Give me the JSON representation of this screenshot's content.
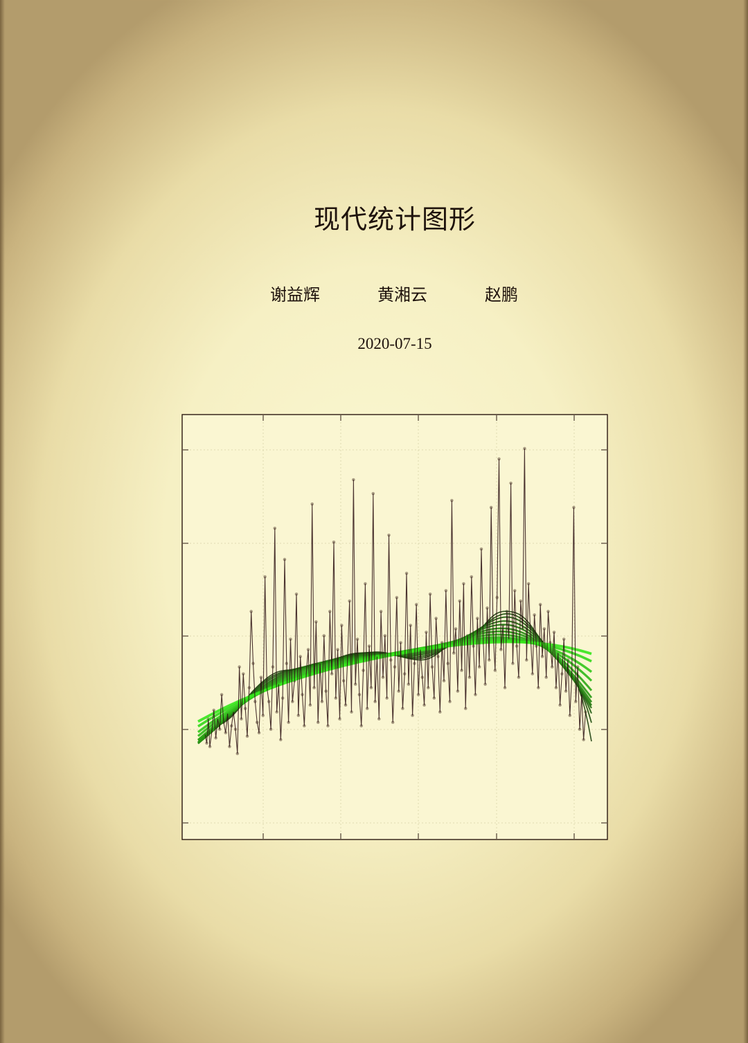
{
  "document": {
    "title": "现代统计图形",
    "authors": [
      "谢益辉",
      "黄湘云",
      "赵鹏"
    ],
    "date": "2020-07-15"
  },
  "colors": {
    "background": "#f8f3cd",
    "ink": "#2a1810",
    "points": "#3b2418",
    "smooth_dark": "#1a3d0c",
    "smooth_bright": "#36e61c"
  },
  "chart_data": {
    "type": "scatter",
    "title": "",
    "xlabel": "",
    "ylabel": "",
    "grid": true,
    "xlim": [
      0,
      1
    ],
    "ylim": [
      -0.1,
      1.05
    ],
    "points": [
      [
        0.018,
        0.165
      ],
      [
        0.022,
        0.14
      ],
      [
        0.026,
        0.21
      ],
      [
        0.03,
        0.13
      ],
      [
        0.035,
        0.175
      ],
      [
        0.04,
        0.235
      ],
      [
        0.045,
        0.155
      ],
      [
        0.05,
        0.21
      ],
      [
        0.055,
        0.18
      ],
      [
        0.06,
        0.28
      ],
      [
        0.065,
        0.2
      ],
      [
        0.07,
        0.17
      ],
      [
        0.075,
        0.225
      ],
      [
        0.08,
        0.13
      ],
      [
        0.085,
        0.19
      ],
      [
        0.09,
        0.23
      ],
      [
        0.095,
        0.18
      ],
      [
        0.1,
        0.11
      ],
      [
        0.105,
        0.36
      ],
      [
        0.11,
        0.21
      ],
      [
        0.115,
        0.34
      ],
      [
        0.12,
        0.24
      ],
      [
        0.125,
        0.16
      ],
      [
        0.13,
        0.3
      ],
      [
        0.135,
        0.52
      ],
      [
        0.14,
        0.37
      ],
      [
        0.145,
        0.26
      ],
      [
        0.15,
        0.2
      ],
      [
        0.155,
        0.17
      ],
      [
        0.16,
        0.33
      ],
      [
        0.165,
        0.22
      ],
      [
        0.17,
        0.62
      ],
      [
        0.175,
        0.3
      ],
      [
        0.18,
        0.26
      ],
      [
        0.185,
        0.18
      ],
      [
        0.19,
        0.36
      ],
      [
        0.195,
        0.76
      ],
      [
        0.2,
        0.23
      ],
      [
        0.205,
        0.31
      ],
      [
        0.21,
        0.15
      ],
      [
        0.215,
        0.27
      ],
      [
        0.22,
        0.67
      ],
      [
        0.225,
        0.37
      ],
      [
        0.23,
        0.2
      ],
      [
        0.235,
        0.44
      ],
      [
        0.24,
        0.26
      ],
      [
        0.245,
        0.32
      ],
      [
        0.25,
        0.57
      ],
      [
        0.255,
        0.22
      ],
      [
        0.26,
        0.39
      ],
      [
        0.265,
        0.28
      ],
      [
        0.27,
        0.19
      ],
      [
        0.275,
        0.34
      ],
      [
        0.28,
        0.41
      ],
      [
        0.285,
        0.25
      ],
      [
        0.29,
        0.83
      ],
      [
        0.295,
        0.3
      ],
      [
        0.3,
        0.49
      ],
      [
        0.305,
        0.2
      ],
      [
        0.31,
        0.37
      ],
      [
        0.315,
        0.26
      ],
      [
        0.32,
        0.45
      ],
      [
        0.325,
        0.29
      ],
      [
        0.33,
        0.19
      ],
      [
        0.335,
        0.52
      ],
      [
        0.34,
        0.34
      ],
      [
        0.345,
        0.72
      ],
      [
        0.35,
        0.27
      ],
      [
        0.355,
        0.41
      ],
      [
        0.36,
        0.21
      ],
      [
        0.365,
        0.48
      ],
      [
        0.37,
        0.32
      ],
      [
        0.375,
        0.25
      ],
      [
        0.38,
        0.38
      ],
      [
        0.385,
        0.55
      ],
      [
        0.39,
        0.23
      ],
      [
        0.395,
        0.9
      ],
      [
        0.4,
        0.31
      ],
      [
        0.405,
        0.44
      ],
      [
        0.41,
        0.28
      ],
      [
        0.415,
        0.19
      ],
      [
        0.42,
        0.35
      ],
      [
        0.425,
        0.6
      ],
      [
        0.43,
        0.24
      ],
      [
        0.435,
        0.42
      ],
      [
        0.44,
        0.3
      ],
      [
        0.445,
        0.86
      ],
      [
        0.45,
        0.26
      ],
      [
        0.455,
        0.39
      ],
      [
        0.46,
        0.21
      ],
      [
        0.465,
        0.52
      ],
      [
        0.47,
        0.33
      ],
      [
        0.475,
        0.45
      ],
      [
        0.48,
        0.27
      ],
      [
        0.485,
        0.74
      ],
      [
        0.49,
        0.38
      ],
      [
        0.495,
        0.2
      ],
      [
        0.5,
        0.36
      ],
      [
        0.505,
        0.56
      ],
      [
        0.51,
        0.29
      ],
      [
        0.515,
        0.43
      ],
      [
        0.52,
        0.24
      ],
      [
        0.525,
        0.34
      ],
      [
        0.53,
        0.63
      ],
      [
        0.535,
        0.31
      ],
      [
        0.54,
        0.48
      ],
      [
        0.545,
        0.22
      ],
      [
        0.55,
        0.37
      ],
      [
        0.555,
        0.54
      ],
      [
        0.56,
        0.28
      ],
      [
        0.565,
        0.41
      ],
      [
        0.57,
        0.33
      ],
      [
        0.575,
        0.25
      ],
      [
        0.58,
        0.46
      ],
      [
        0.585,
        0.3
      ],
      [
        0.59,
        0.57
      ],
      [
        0.595,
        0.36
      ],
      [
        0.6,
        0.27
      ],
      [
        0.605,
        0.5
      ],
      [
        0.61,
        0.39
      ],
      [
        0.615,
        0.23
      ],
      [
        0.62,
        0.43
      ],
      [
        0.625,
        0.32
      ],
      [
        0.63,
        0.58
      ],
      [
        0.635,
        0.37
      ],
      [
        0.64,
        0.26
      ],
      [
        0.645,
        0.84
      ],
      [
        0.65,
        0.4
      ],
      [
        0.655,
        0.47
      ],
      [
        0.66,
        0.29
      ],
      [
        0.665,
        0.55
      ],
      [
        0.67,
        0.35
      ],
      [
        0.675,
        0.6
      ],
      [
        0.68,
        0.24
      ],
      [
        0.685,
        0.45
      ],
      [
        0.69,
        0.33
      ],
      [
        0.695,
        0.62
      ],
      [
        0.7,
        0.42
      ],
      [
        0.705,
        0.28
      ],
      [
        0.71,
        0.5
      ],
      [
        0.715,
        0.36
      ],
      [
        0.72,
        0.7
      ],
      [
        0.725,
        0.43
      ],
      [
        0.73,
        0.31
      ],
      [
        0.735,
        0.53
      ],
      [
        0.74,
        0.38
      ],
      [
        0.745,
        0.82
      ],
      [
        0.75,
        0.46
      ],
      [
        0.755,
        0.35
      ],
      [
        0.76,
        0.56
      ],
      [
        0.765,
        0.96
      ],
      [
        0.77,
        0.41
      ],
      [
        0.775,
        0.48
      ],
      [
        0.78,
        0.3
      ],
      [
        0.785,
        0.52
      ],
      [
        0.79,
        0.44
      ],
      [
        0.795,
        0.89
      ],
      [
        0.8,
        0.37
      ],
      [
        0.805,
        0.58
      ],
      [
        0.81,
        0.42
      ],
      [
        0.815,
        0.33
      ],
      [
        0.82,
        0.55
      ],
      [
        0.825,
        0.47
      ],
      [
        0.83,
        0.99
      ],
      [
        0.835,
        0.38
      ],
      [
        0.84,
        0.6
      ],
      [
        0.845,
        0.45
      ],
      [
        0.85,
        0.34
      ],
      [
        0.855,
        0.51
      ],
      [
        0.86,
        0.42
      ],
      [
        0.865,
        0.3
      ],
      [
        0.87,
        0.54
      ],
      [
        0.875,
        0.39
      ],
      [
        0.88,
        0.47
      ],
      [
        0.885,
        0.33
      ],
      [
        0.89,
        0.52
      ],
      [
        0.895,
        0.43
      ],
      [
        0.9,
        0.36
      ],
      [
        0.905,
        0.46
      ],
      [
        0.91,
        0.3
      ],
      [
        0.915,
        0.4
      ],
      [
        0.92,
        0.25
      ],
      [
        0.925,
        0.34
      ],
      [
        0.93,
        0.44
      ],
      [
        0.935,
        0.29
      ],
      [
        0.94,
        0.38
      ],
      [
        0.945,
        0.22
      ],
      [
        0.95,
        0.33
      ],
      [
        0.955,
        0.82
      ],
      [
        0.96,
        0.26
      ],
      [
        0.965,
        0.36
      ],
      [
        0.97,
        0.18
      ],
      [
        0.975,
        0.28
      ],
      [
        0.98,
        0.15
      ],
      [
        0.985,
        0.23
      ]
    ],
    "smooth_spans": [
      0.12,
      0.16,
      0.2,
      0.25,
      0.3,
      0.36,
      0.42,
      0.5,
      0.6,
      0.7,
      0.85,
      1.0
    ]
  }
}
